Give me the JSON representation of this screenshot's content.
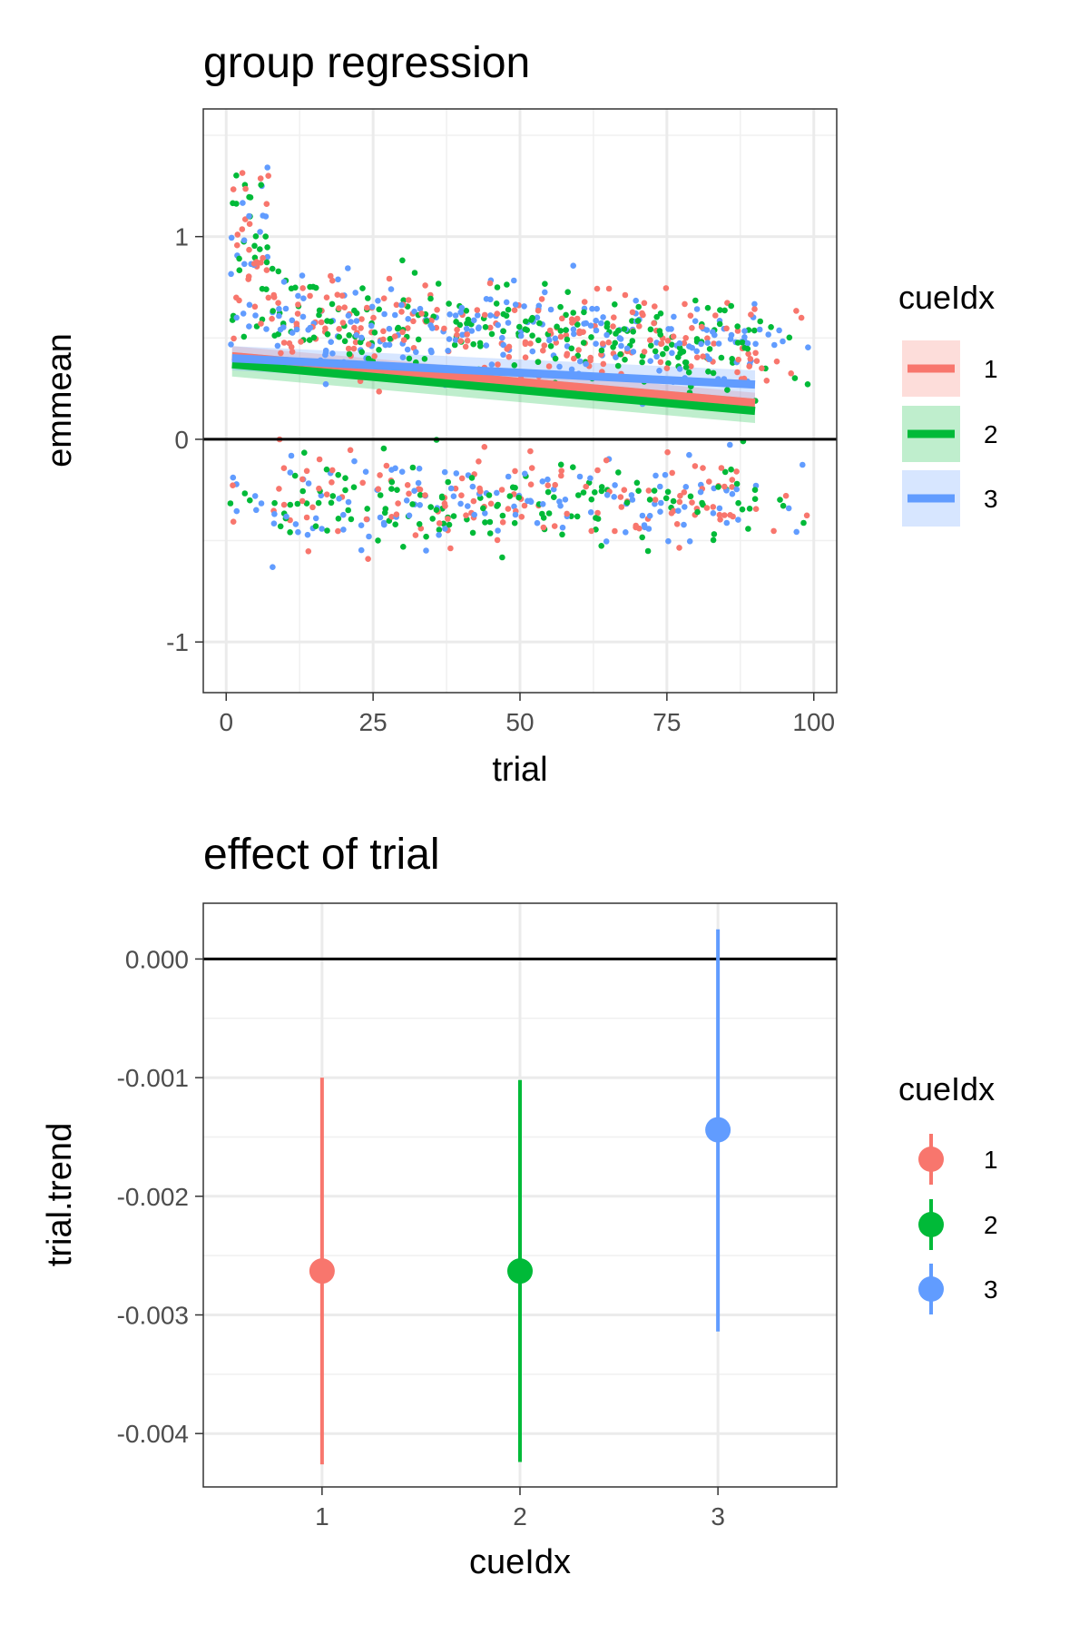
{
  "colors": {
    "1": "#F8766D",
    "2": "#00BA38",
    "3": "#619CFF"
  },
  "chart_data": [
    {
      "type": "scatter",
      "title": "group regression",
      "xlabel": "trial",
      "ylabel": "emmean",
      "xlim": [
        -3.9,
        103.9
      ],
      "ylim": [
        -1.25,
        1.63
      ],
      "xticks": [
        "0",
        "25",
        "50",
        "75",
        "100"
      ],
      "yticks": [
        "-1",
        "0",
        "1"
      ],
      "legend": {
        "title": "cueIdx",
        "entries": [
          "1",
          "2",
          "3"
        ],
        "position": "right"
      },
      "reference_line": {
        "y": 0
      },
      "grid": true,
      "series": [
        {
          "name": "1",
          "fit": {
            "x": [
              1,
              90
            ],
            "y": [
              0.41,
              0.18
            ]
          },
          "ci_halfwidth": [
            0.05,
            0.05
          ]
        },
        {
          "name": "2",
          "fit": {
            "x": [
              1,
              90
            ],
            "y": [
              0.37,
              0.14
            ]
          },
          "ci_halfwidth": [
            0.06,
            0.06
          ]
        },
        {
          "name": "3",
          "fit": {
            "x": [
              1,
              90
            ],
            "y": [
              0.4,
              0.27
            ]
          },
          "ci_halfwidth": [
            0.06,
            0.07
          ]
        }
      ],
      "points_per_series_approx": 330
    },
    {
      "type": "scatter",
      "title": "effect of trial",
      "xlabel": "cueIdx",
      "ylabel": "trial.trend",
      "categories": [
        "1",
        "2",
        "3"
      ],
      "ylim": [
        -0.00445,
        0.00047
      ],
      "yticks": [
        "0.000",
        "-0.001",
        "-0.002",
        "-0.003",
        "-0.004"
      ],
      "legend": {
        "title": "cueIdx",
        "entries": [
          "1",
          "2",
          "3"
        ],
        "position": "right"
      },
      "reference_line": {
        "y": 0
      },
      "grid": true,
      "series": [
        {
          "name": "1",
          "estimate": -0.00263,
          "lower": -0.00426,
          "upper": -0.001
        },
        {
          "name": "2",
          "estimate": -0.00263,
          "lower": -0.00424,
          "upper": -0.00102
        },
        {
          "name": "3",
          "estimate": -0.00144,
          "lower": -0.00314,
          "upper": 0.00025
        }
      ]
    }
  ]
}
